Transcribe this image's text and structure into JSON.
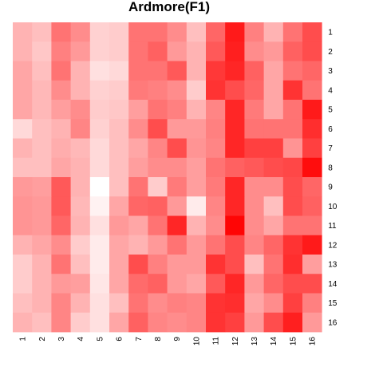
{
  "chart_data": {
    "type": "heatmap",
    "title": "Ardmore(F1)",
    "xlabel": "",
    "ylabel": "",
    "x_labels": [
      "1",
      "2",
      "3",
      "4",
      "5",
      "6",
      "7",
      "8",
      "9",
      "10",
      "11",
      "12",
      "13",
      "14",
      "15",
      "16"
    ],
    "y_labels": [
      "1",
      "2",
      "3",
      "4",
      "5",
      "6",
      "7",
      "8",
      "9",
      "10",
      "11",
      "12",
      "13",
      "14",
      "15",
      "16"
    ],
    "value_range": [
      0,
      1
    ],
    "color_low": "#ffffff",
    "color_high": "#ff0000",
    "grid": false,
    "legend": "none",
    "values": [
      [
        0.3,
        0.25,
        0.55,
        0.45,
        0.18,
        0.2,
        0.55,
        0.55,
        0.45,
        0.25,
        0.6,
        0.9,
        0.5,
        0.3,
        0.55,
        0.7
      ],
      [
        0.3,
        0.22,
        0.5,
        0.4,
        0.18,
        0.2,
        0.55,
        0.62,
        0.4,
        0.3,
        0.65,
        0.88,
        0.45,
        0.4,
        0.62,
        0.7
      ],
      [
        0.35,
        0.25,
        0.55,
        0.3,
        0.12,
        0.15,
        0.55,
        0.55,
        0.65,
        0.3,
        0.78,
        0.85,
        0.62,
        0.35,
        0.55,
        0.6
      ],
      [
        0.35,
        0.28,
        0.45,
        0.3,
        0.18,
        0.2,
        0.52,
        0.5,
        0.45,
        0.2,
        0.8,
        0.7,
        0.6,
        0.35,
        0.8,
        0.55
      ],
      [
        0.35,
        0.28,
        0.38,
        0.45,
        0.2,
        0.22,
        0.38,
        0.55,
        0.5,
        0.3,
        0.48,
        0.85,
        0.52,
        0.35,
        0.55,
        0.9
      ],
      [
        0.15,
        0.25,
        0.3,
        0.48,
        0.18,
        0.25,
        0.45,
        0.7,
        0.4,
        0.4,
        0.5,
        0.85,
        0.55,
        0.55,
        0.55,
        0.82
      ],
      [
        0.3,
        0.25,
        0.32,
        0.28,
        0.15,
        0.25,
        0.35,
        0.48,
        0.7,
        0.42,
        0.48,
        0.85,
        0.75,
        0.75,
        0.42,
        0.75
      ],
      [
        0.25,
        0.25,
        0.35,
        0.3,
        0.15,
        0.25,
        0.38,
        0.45,
        0.45,
        0.38,
        0.55,
        0.62,
        0.65,
        0.7,
        0.72,
        0.95
      ],
      [
        0.4,
        0.38,
        0.65,
        0.3,
        0.0,
        0.25,
        0.55,
        0.2,
        0.52,
        0.38,
        0.52,
        0.85,
        0.45,
        0.45,
        0.7,
        0.6
      ],
      [
        0.42,
        0.4,
        0.65,
        0.28,
        0.05,
        0.35,
        0.6,
        0.62,
        0.4,
        0.08,
        0.48,
        0.85,
        0.45,
        0.25,
        0.7,
        0.62
      ],
      [
        0.42,
        0.4,
        0.6,
        0.3,
        0.12,
        0.4,
        0.35,
        0.55,
        0.85,
        0.3,
        0.45,
        0.98,
        0.45,
        0.35,
        0.55,
        0.55
      ],
      [
        0.3,
        0.35,
        0.45,
        0.2,
        0.08,
        0.35,
        0.3,
        0.4,
        0.55,
        0.4,
        0.55,
        0.7,
        0.48,
        0.6,
        0.8,
        0.9
      ],
      [
        0.2,
        0.3,
        0.55,
        0.25,
        0.08,
        0.35,
        0.7,
        0.5,
        0.4,
        0.4,
        0.8,
        0.7,
        0.25,
        0.55,
        0.82,
        0.38
      ],
      [
        0.2,
        0.3,
        0.4,
        0.38,
        0.1,
        0.35,
        0.58,
        0.62,
        0.4,
        0.35,
        0.65,
        0.85,
        0.4,
        0.6,
        0.7,
        0.7
      ],
      [
        0.25,
        0.3,
        0.48,
        0.3,
        0.12,
        0.25,
        0.55,
        0.45,
        0.5,
        0.48,
        0.8,
        0.82,
        0.35,
        0.45,
        0.75,
        0.5
      ],
      [
        0.3,
        0.25,
        0.48,
        0.2,
        0.12,
        0.35,
        0.62,
        0.48,
        0.45,
        0.48,
        0.8,
        0.75,
        0.4,
        0.7,
        0.88,
        0.4
      ]
    ]
  }
}
